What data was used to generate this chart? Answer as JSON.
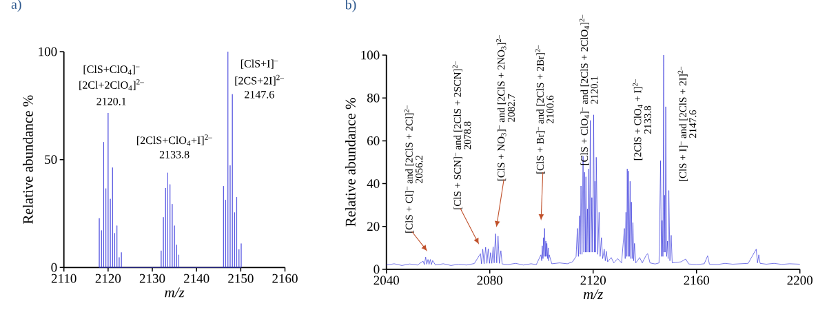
{
  "chart_data": [
    {
      "type": "line",
      "title": "a)",
      "xlabel": "m/z",
      "ylabel": "Relative abundance %",
      "xlim": [
        2110,
        2160
      ],
      "ylim": [
        0,
        100
      ],
      "xticks": [
        2110,
        2120,
        2130,
        2140,
        2150,
        2160
      ],
      "yticks": [
        0,
        50,
        100
      ],
      "series": [
        {
          "color": "#3b3bdc",
          "x": [
            2118.0,
            2118.0,
            2118.0,
            2118.5,
            2118.5,
            2118.5,
            2119.0,
            2119.0,
            2119.0,
            2119.5,
            2119.5,
            2119.5,
            2120.0,
            2120.0,
            2120.0,
            2120.5,
            2120.5,
            2120.5,
            2121.0,
            2121.0,
            2121.0,
            2121.5,
            2121.5,
            2121.5,
            2122.0,
            2122.0,
            2122.0,
            2122.5,
            2122.5,
            2122.5,
            2123.0,
            2123.0,
            2123.0,
            2132.0,
            2132.0,
            2132.0,
            2132.5,
            2132.5,
            2132.5,
            2133.0,
            2133.0,
            2133.0,
            2133.5,
            2133.5,
            2133.5,
            2134.0,
            2134.0,
            2134.0,
            2134.5,
            2134.5,
            2134.5,
            2135.0,
            2135.0,
            2135.0,
            2135.5,
            2135.5,
            2135.5,
            2136.0,
            2136.0,
            2136.0,
            2146.1,
            2146.1,
            2146.1,
            2146.6,
            2146.6,
            2146.6,
            2147.1,
            2147.1,
            2147.1,
            2147.6,
            2147.6,
            2147.6,
            2148.1,
            2148.1,
            2148.1,
            2148.6,
            2148.6,
            2148.6,
            2149.1,
            2149.1,
            2149.1,
            2149.6,
            2149.6,
            2149.6,
            2150.1,
            2150.1,
            2150.1
          ],
          "values": [
            0,
            22.8,
            0,
            0,
            17.2,
            0,
            0,
            58.1,
            0,
            0,
            36.6,
            0,
            0,
            71.6,
            0,
            0,
            31.8,
            0,
            0,
            46.3,
            0,
            0,
            15.9,
            0,
            0,
            19.4,
            0,
            0,
            4.7,
            0,
            0,
            7.0,
            0,
            0,
            7.8,
            0,
            0,
            23.3,
            0,
            0,
            36.8,
            0,
            0,
            43.9,
            0,
            0,
            38.5,
            0,
            0,
            29.4,
            0,
            0,
            19.4,
            0,
            0,
            10.5,
            0,
            0,
            5.9,
            0,
            0,
            37.7,
            0,
            0,
            31.3,
            0,
            0,
            100,
            0,
            0,
            47.3,
            0,
            0,
            80.3,
            0,
            0,
            25.5,
            0,
            0,
            32.6,
            0,
            0,
            8.4,
            0,
            0,
            11.1,
            0
          ]
        }
      ],
      "annotations": [
        "[ClS+ClO$_{4}$]$^{–}$",
        "[2Cl+2ClO$_{4}$]$^{2–}$",
        "2120.1",
        "[2ClS+ClO$_{4}$+I]$^{2–}$",
        "2133.8",
        "[ClS+I]$^{–}$",
        "[2CS+2I]$^{2–}$",
        "2147.6"
      ]
    },
    {
      "type": "line",
      "title": "b)",
      "xlabel": "m/z",
      "ylabel": "Relative abundance %",
      "xlim": [
        2040,
        2200
      ],
      "ylim": [
        0,
        100
      ],
      "xticks": [
        2040,
        2080,
        2120,
        2160,
        2200
      ],
      "yticks": [
        0,
        20,
        40,
        60,
        80,
        100
      ],
      "series": [
        {
          "color": "#3b3bdc",
          "x": [
            2040,
            2043,
            2046,
            2049,
            2052,
            2054.2,
            2054.7,
            2055.2,
            2055.6,
            2056.1,
            2056.5,
            2057.0,
            2057.4,
            2057.9,
            2059,
            2062,
            2065,
            2068,
            2071,
            2074,
            2076.4,
            2076.8,
            2077.3,
            2077.8,
            2078.4,
            2078.9,
            2079.4,
            2079.9,
            2080.3,
            2080.8,
            2081.3,
            2081.7,
            2082.2,
            2082.7,
            2083.2,
            2083.7,
            2084.3,
            2084.8,
            2087,
            2090,
            2093,
            2096,
            2098,
            2099.8,
            2100.1,
            2100.3,
            2100.6,
            2100.8,
            2101.0,
            2101.2,
            2101.5,
            2101.7,
            2101.9,
            2102.1,
            2102.4,
            2102.6,
            2102.8,
            2103.0,
            2104,
            2107,
            2110,
            2112,
            2113.4,
            2113.9,
            2114.3,
            2114.7,
            2115.0,
            2115.3,
            2115.7,
            2116.1,
            2116.4,
            2116.7,
            2117.0,
            2117.2,
            2117.5,
            2117.8,
            2118.0,
            2118.3,
            2118.6,
            2118.9,
            2119.2,
            2119.5,
            2119.8,
            2120.2,
            2120.5,
            2120.7,
            2121.0,
            2121.2,
            2121.8,
            2122.3,
            2122.7,
            2123.2,
            2123.7,
            2124.3,
            2124.7,
            2125.1,
            2125.6,
            2127,
            2128,
            2129.5,
            2131,
            2132.1,
            2132.4,
            2132.7,
            2133.0,
            2133.2,
            2133.5,
            2133.7,
            2134.0,
            2134.3,
            2134.6,
            2134.8,
            2135.1,
            2135.4,
            2135.7,
            2136.0,
            2136.5,
            2138,
            2139,
            2140.5,
            2141.1,
            2142,
            2144,
            2145.5,
            2146.1,
            2146.4,
            2146.7,
            2147.0,
            2147.3,
            2147.45,
            2147.6,
            2147.85,
            2148.1,
            2148.45,
            2148.8,
            2149.0,
            2149.3,
            2149.7,
            2150.2,
            2150.6,
            2152,
            2154,
            2155.8,
            2157,
            2160,
            2163,
            2164.3,
            2165,
            2168,
            2171,
            2174,
            2177,
            2180,
            2183.1,
            2183.6,
            2184.1,
            2184.6,
            2187,
            2190,
            2193,
            2196,
            2200
          ],
          "values": [
            2.0,
            2.6,
            1.8,
            2.5,
            2.0,
            3.8,
            2.2,
            5.7,
            2.4,
            4.6,
            2.3,
            4.6,
            2.2,
            4.1,
            2.0,
            2.6,
            1.8,
            2.4,
            2.0,
            2.7,
            7.3,
            2.6,
            9.4,
            2.6,
            10.3,
            2.8,
            9.6,
            2.8,
            7.8,
            2.8,
            10.5,
            3.0,
            16.6,
            3.0,
            15.5,
            2.8,
            8.7,
            2.5,
            2.2,
            2.8,
            2.0,
            2.6,
            2.2,
            6.8,
            4.0,
            11.0,
            5.0,
            14.8,
            6.0,
            19.1,
            6.0,
            13.2,
            6.0,
            12.1,
            5.0,
            10.0,
            4.0,
            6.8,
            2.6,
            3.0,
            2.6,
            3.5,
            6,
            19.1,
            6,
            25.0,
            7,
            38.9,
            7,
            52.8,
            8,
            45.3,
            8,
            43.2,
            8,
            28.2,
            8,
            46.9,
            8,
            69.5,
            8,
            33.5,
            8,
            72.1,
            8,
            41.1,
            8,
            52.3,
            7,
            26.6,
            6,
            14.8,
            5,
            9.4,
            4,
            8.4,
            3.5,
            5.5,
            3,
            5,
            3,
            19.1,
            5,
            26.6,
            6,
            46.9,
            6,
            45.9,
            6,
            41.1,
            5,
            31.4,
            5,
            21.8,
            4,
            12.1,
            3,
            5.5,
            3,
            6.5,
            7.3,
            3,
            2.5,
            3,
            50.7,
            6,
            22.8,
            6,
            100,
            8,
            34.6,
            8,
            75.9,
            6,
            13.2,
            5,
            36.8,
            4,
            15.9,
            3,
            3.2,
            3.5,
            4.8,
            2.5,
            2.2,
            2.6,
            6.3,
            2.4,
            2.2,
            2.8,
            2.4,
            2.6,
            2.8,
            9.4,
            3,
            6.8,
            2.8,
            2.4,
            2.8,
            2.3,
            2.6,
            2.4
          ]
        }
      ],
      "annotations": [
        "[ClS + Cl]$^{–}$ and [2ClS + 2Cl]$^{2–}$",
        "2056.2",
        "[ClS + SCN]$^{–}$ and [2ClS + 2SCN]$^{2–}$",
        "2078.8",
        "[ClS + NO$_{3}$]$^{–}$ and [2ClS + 2NO$_{3}$]$^{2–}$",
        "2082.7",
        "[ClS + Br]$^{–}$ and [2ClS + 2Br]$^{2–}$",
        "2100.6",
        "[ClS + ClO$_{4}$]$^{–}$ and [2ClS + 2ClO$_{4}$]$^{2–}$",
        "2120.1",
        "[2ClS + ClO$_{4}$ + I]$^{2–}$",
        "2133.8",
        "[ClS + I]$^{–}$ and [2ClS + 2I]$^{2–}$",
        "2147.6"
      ]
    }
  ]
}
